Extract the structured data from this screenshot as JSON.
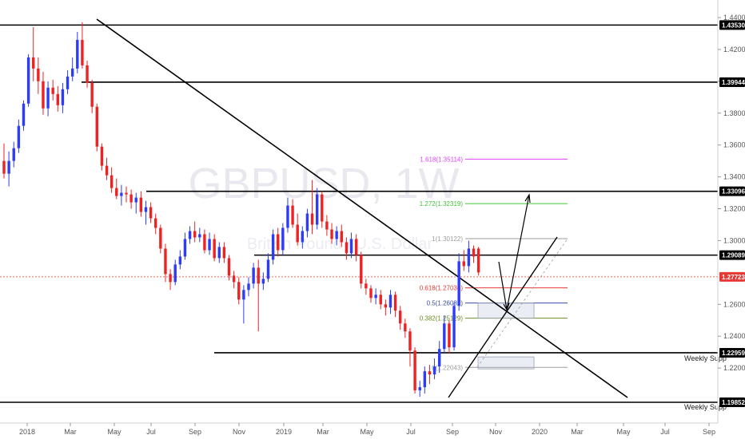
{
  "watermark": {
    "symbol": "GBPUSD, 1W",
    "description": "British Pound / U.S. Dollar"
  },
  "chart_data": {
    "type": "candlestick",
    "y_ticks": [
      "1.44000",
      "1.42000",
      "1.40000",
      "1.38000",
      "1.36000",
      "1.34000",
      "1.32000",
      "1.30000",
      "1.26000",
      "1.24000",
      "1.22000"
    ],
    "x_ticks": [
      "2018",
      "Mar",
      "May",
      "Jul",
      "Sep",
      "Nov",
      "2019",
      "Mar",
      "May",
      "Jul",
      "Sep",
      "Nov",
      "2020",
      "Mar",
      "May",
      "Jul",
      "Sep"
    ],
    "ylim": [
      1.1905,
      1.441
    ],
    "grid": false,
    "series": [
      {
        "values": [
          [
            1.35,
            1.342,
            1.361,
            1.339
          ],
          [
            1.342,
            1.35,
            1.356,
            1.334
          ],
          [
            1.35,
            1.358,
            1.362,
            1.346
          ],
          [
            1.358,
            1.372,
            1.376,
            1.355
          ],
          [
            1.372,
            1.386,
            1.388,
            1.369
          ],
          [
            1.386,
            1.415,
            1.417,
            1.384
          ],
          [
            1.415,
            1.408,
            1.434,
            1.4
          ],
          [
            1.408,
            1.4,
            1.415,
            1.392
          ],
          [
            1.4,
            1.383,
            1.406,
            1.379
          ],
          [
            1.383,
            1.396,
            1.4,
            1.378
          ],
          [
            1.396,
            1.392,
            1.401,
            1.388
          ],
          [
            1.392,
            1.385,
            1.397,
            1.381
          ],
          [
            1.385,
            1.395,
            1.399,
            1.38
          ],
          [
            1.395,
            1.403,
            1.407,
            1.392
          ],
          [
            1.403,
            1.408,
            1.415,
            1.4
          ],
          [
            1.408,
            1.426,
            1.431,
            1.405
          ],
          [
            1.426,
            1.41,
            1.437,
            1.408
          ],
          [
            1.41,
            1.399,
            1.413,
            1.396
          ],
          [
            1.399,
            1.384,
            1.401,
            1.38
          ],
          [
            1.384,
            1.359,
            1.386,
            1.356
          ],
          [
            1.359,
            1.347,
            1.361,
            1.344
          ],
          [
            1.347,
            1.341,
            1.352,
            1.338
          ],
          [
            1.341,
            1.333,
            1.346,
            1.33
          ],
          [
            1.333,
            1.328,
            1.339,
            1.326
          ],
          [
            1.328,
            1.33,
            1.335,
            1.322
          ],
          [
            1.33,
            1.329,
            1.334,
            1.324
          ],
          [
            1.329,
            1.324,
            1.332,
            1.32
          ],
          [
            1.324,
            1.327,
            1.33,
            1.317
          ],
          [
            1.327,
            1.318,
            1.331,
            1.315
          ],
          [
            1.318,
            1.321,
            1.325,
            1.31
          ],
          [
            1.321,
            1.314,
            1.324,
            1.311
          ],
          [
            1.314,
            1.308,
            1.317,
            1.304
          ],
          [
            1.308,
            1.295,
            1.31,
            1.292
          ],
          [
            1.295,
            1.279,
            1.298,
            1.274
          ],
          [
            1.279,
            1.274,
            1.282,
            1.269
          ],
          [
            1.274,
            1.285,
            1.288,
            1.272
          ],
          [
            1.285,
            1.29,
            1.294,
            1.282
          ],
          [
            1.29,
            1.301,
            1.305,
            1.288
          ],
          [
            1.301,
            1.306,
            1.309,
            1.298
          ],
          [
            1.306,
            1.302,
            1.312,
            1.299
          ],
          [
            1.302,
            1.304,
            1.308,
            1.299
          ],
          [
            1.304,
            1.294,
            1.307,
            1.292
          ],
          [
            1.294,
            1.301,
            1.305,
            1.291
          ],
          [
            1.301,
            1.289,
            1.304,
            1.287
          ],
          [
            1.289,
            1.296,
            1.299,
            1.286
          ],
          [
            1.296,
            1.289,
            1.299,
            1.286
          ],
          [
            1.289,
            1.278,
            1.291,
            1.275
          ],
          [
            1.278,
            1.274,
            1.281,
            1.27
          ],
          [
            1.274,
            1.263,
            1.277,
            1.26
          ],
          [
            1.263,
            1.269,
            1.272,
            1.248
          ],
          [
            1.269,
            1.273,
            1.277,
            1.265
          ],
          [
            1.273,
            1.283,
            1.286,
            1.27
          ],
          [
            1.283,
            1.273,
            1.288,
            1.243
          ],
          [
            1.273,
            1.276,
            1.28,
            1.269
          ],
          [
            1.276,
            1.288,
            1.292,
            1.274
          ],
          [
            1.288,
            1.304,
            1.307,
            1.285
          ],
          [
            1.304,
            1.294,
            1.308,
            1.29
          ],
          [
            1.294,
            1.308,
            1.311,
            1.291
          ],
          [
            1.308,
            1.322,
            1.327,
            1.305
          ],
          [
            1.322,
            1.31,
            1.326,
            1.308
          ],
          [
            1.31,
            1.299,
            1.317,
            1.297
          ],
          [
            1.299,
            1.306,
            1.309,
            1.295
          ],
          [
            1.306,
            1.317,
            1.32,
            1.302
          ],
          [
            1.317,
            1.31,
            1.338,
            1.304
          ],
          [
            1.31,
            1.329,
            1.333,
            1.307
          ],
          [
            1.329,
            1.312,
            1.331,
            1.308
          ],
          [
            1.312,
            1.307,
            1.316,
            1.303
          ],
          [
            1.307,
            1.301,
            1.311,
            1.298
          ],
          [
            1.301,
            1.306,
            1.309,
            1.297
          ],
          [
            1.306,
            1.299,
            1.31,
            1.296
          ],
          [
            1.299,
            1.292,
            1.302,
            1.288
          ],
          [
            1.292,
            1.301,
            1.305,
            1.289
          ],
          [
            1.301,
            1.291,
            1.304,
            1.287
          ],
          [
            1.291,
            1.273,
            1.293,
            1.27
          ],
          [
            1.273,
            1.27,
            1.276,
            1.266
          ],
          [
            1.27,
            1.264,
            1.272,
            1.261
          ],
          [
            1.264,
            1.266,
            1.27,
            1.26
          ],
          [
            1.266,
            1.26,
            1.269,
            1.257
          ],
          [
            1.26,
            1.258,
            1.263,
            1.253
          ],
          [
            1.258,
            1.266,
            1.269,
            1.254
          ],
          [
            1.266,
            1.256,
            1.268,
            1.252
          ],
          [
            1.256,
            1.248,
            1.259,
            1.244
          ],
          [
            1.248,
            1.243,
            1.251,
            1.239
          ],
          [
            1.243,
            1.231,
            1.245,
            1.221
          ],
          [
            1.231,
            1.206,
            1.233,
            1.204
          ],
          [
            1.206,
            1.208,
            1.212,
            1.202
          ],
          [
            1.208,
            1.218,
            1.221,
            1.204
          ],
          [
            1.218,
            1.216,
            1.222,
            1.21
          ],
          [
            1.216,
            1.221,
            1.226,
            1.213
          ],
          [
            1.221,
            1.232,
            1.237,
            1.217
          ],
          [
            1.232,
            1.248,
            1.253,
            1.229
          ],
          [
            1.248,
            1.233,
            1.25,
            1.229
          ],
          [
            1.233,
            1.259,
            1.261,
            1.231
          ],
          [
            1.259,
            1.287,
            1.292,
            1.256
          ],
          [
            1.287,
            1.284,
            1.294,
            1.281
          ],
          [
            1.284,
            1.295,
            1.3,
            1.28
          ],
          [
            1.295,
            1.29,
            1.297,
            1.286
          ],
          [
            1.295,
            1.28,
            1.296,
            1.278
          ]
        ]
      }
    ],
    "horizontal_levels": [
      {
        "label": "1.43530",
        "price": 1.4353,
        "color": "#000000"
      },
      {
        "label": "1.39944",
        "price": 1.39944,
        "color": "#000000"
      },
      {
        "label": "1.33096",
        "price": 1.33096,
        "color": "#000000"
      },
      {
        "label": "1.29089",
        "price": 1.29089,
        "color": "#000000"
      },
      {
        "label": "1.27723",
        "price": 1.27723,
        "color": "#e53935"
      },
      {
        "label": "1.22959",
        "price": 1.22959,
        "color": "#000000",
        "annotation": "Weekly Supp"
      },
      {
        "label": "1.19852",
        "price": 1.19852,
        "color": "#000000",
        "annotation": "Weekly Supp"
      }
    ],
    "fibonacci_levels": [
      {
        "label": "1.618(1.35114)",
        "price": 1.35114,
        "color": "#e040fb"
      },
      {
        "label": "1.272(1.32319)",
        "price": 1.32319,
        "color": "#43c43a"
      },
      {
        "label": "1(1.30122)",
        "price": 1.30122,
        "color": "#9e9e9e"
      },
      {
        "label": "0.618(1.27036)",
        "price": 1.27036,
        "color": "#e53935"
      },
      {
        "label": "0.5(1.26082)",
        "price": 1.26082,
        "color": "#3949ab"
      },
      {
        "label": "0.382(1.25129)",
        "price": 1.25129,
        "color": "#6b8e23"
      },
      {
        "label": "0(1.22043)",
        "price": 1.22043,
        "color": "#9e9e9e"
      }
    ]
  }
}
